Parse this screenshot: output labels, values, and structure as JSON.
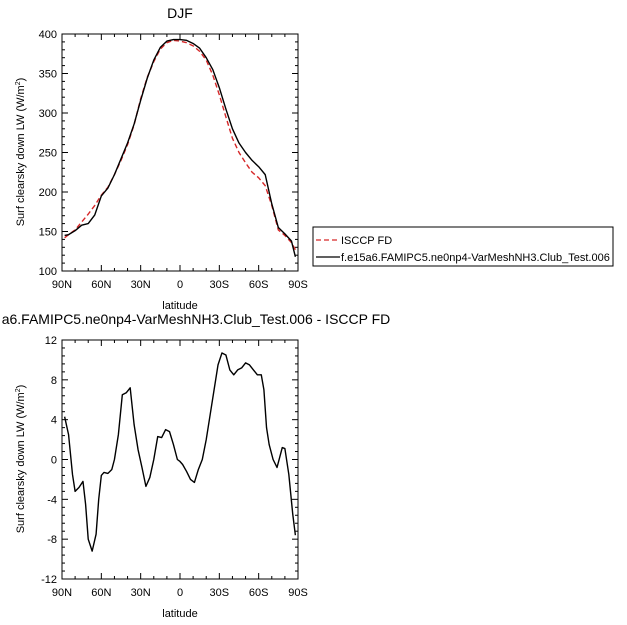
{
  "chart_data": [
    {
      "type": "line",
      "title": "DJF",
      "xlabel": "latitude",
      "ylabel": "Surf clearsky down LW (W/m",
      "ylabel_sup": "2",
      "ylabel_close": ")",
      "xlim": [
        90,
        -90
      ],
      "ylim": [
        100,
        400
      ],
      "yticks": [
        100,
        150,
        200,
        250,
        300,
        350,
        400
      ],
      "x_tick_values": [
        90,
        60,
        30,
        0,
        -30,
        -60,
        -90
      ],
      "x_tick_labels": [
        "90N",
        "60N",
        "30N",
        "0",
        "30S",
        "60S",
        "90S"
      ],
      "legend_position": "right",
      "series": [
        {
          "name": "ISCCP FD",
          "color": "#d62728",
          "dash": "dashed",
          "x": [
            88,
            85,
            80,
            75,
            70,
            65,
            60,
            55,
            50,
            45,
            40,
            35,
            30,
            25,
            20,
            15,
            10,
            5,
            0,
            -5,
            -10,
            -15,
            -20,
            -25,
            -30,
            -35,
            -40,
            -45,
            -50,
            -55,
            -60,
            -65,
            -70,
            -75,
            -80,
            -85,
            -88
          ],
          "y": [
            142,
            146,
            152,
            162,
            172,
            183,
            196,
            206,
            222,
            240,
            260,
            285,
            318,
            345,
            365,
            381,
            389,
            392,
            391,
            389,
            385,
            378,
            367,
            348,
            323,
            295,
            268,
            250,
            237,
            225,
            218,
            208,
            183,
            152,
            145,
            136,
            127
          ]
        },
        {
          "name": "f.e15a6.FAMIPC5.ne0np4-VarMeshNH3.Club_Test.006",
          "color": "#000000",
          "dash": "solid",
          "x": [
            88,
            85,
            80,
            75,
            70,
            65,
            60,
            55,
            50,
            45,
            40,
            35,
            30,
            25,
            20,
            15,
            10,
            5,
            0,
            -5,
            -10,
            -15,
            -20,
            -25,
            -30,
            -35,
            -40,
            -45,
            -50,
            -55,
            -60,
            -65,
            -70,
            -75,
            -80,
            -85,
            -88
          ],
          "y": [
            145,
            146,
            151,
            158,
            160,
            171,
            195,
            205,
            222,
            242,
            262,
            286,
            316,
            344,
            367,
            383,
            391,
            393,
            393,
            392,
            388,
            382,
            370,
            355,
            332,
            305,
            280,
            262,
            250,
            240,
            232,
            222,
            185,
            155,
            147,
            138,
            118
          ]
        }
      ]
    },
    {
      "type": "line",
      "title": "a6.FAMIPC5.ne0np4-VarMeshNH3.Club_Test.006 - ISCCP FD",
      "xlabel": "latitude",
      "ylabel": "Surf clearsky down LW (W/m",
      "ylabel_sup": "2",
      "ylabel_close": ")",
      "xlim": [
        90,
        -90
      ],
      "ylim": [
        -12,
        12
      ],
      "yticks": [
        -12,
        -8,
        -4,
        0,
        4,
        8,
        12
      ],
      "x_tick_values": [
        90,
        60,
        30,
        0,
        -30,
        -60,
        -90
      ],
      "x_tick_labels": [
        "90N",
        "60N",
        "30N",
        "0",
        "30S",
        "60S",
        "90S"
      ],
      "series": [
        {
          "color": "#000000",
          "dash": "solid",
          "x": [
            88,
            85,
            82,
            80,
            77,
            74,
            72,
            70,
            67,
            64,
            62,
            60,
            58,
            55,
            52,
            50,
            47,
            44,
            41,
            38,
            35,
            32,
            29,
            26,
            23,
            20,
            17,
            14,
            11,
            8,
            5,
            2,
            0,
            -2,
            -5,
            -8,
            -11,
            -14,
            -17,
            -20,
            -23,
            -26,
            -29,
            -32,
            -35,
            -38,
            -41,
            -44,
            -47,
            -50,
            -53,
            -56,
            -59,
            -62,
            -64,
            -66,
            -68,
            -71,
            -74,
            -76,
            -78,
            -80,
            -83,
            -86,
            -88
          ],
          "y": [
            4.3,
            2.5,
            -1.5,
            -3.2,
            -2.8,
            -2.2,
            -4.5,
            -8.0,
            -9.2,
            -7.5,
            -4.0,
            -1.6,
            -1.3,
            -1.4,
            -1.0,
            0.0,
            2.5,
            6.5,
            6.7,
            7.2,
            3.5,
            1.0,
            -0.8,
            -2.7,
            -1.8,
            0.0,
            2.3,
            2.2,
            3.0,
            2.8,
            1.5,
            0.0,
            -0.2,
            -0.5,
            -1.2,
            -2.0,
            -2.3,
            -1.0,
            0.0,
            2.0,
            4.5,
            7.0,
            9.5,
            10.7,
            10.5,
            9.0,
            8.5,
            9.0,
            9.2,
            9.7,
            9.5,
            9.0,
            8.5,
            8.5,
            7.0,
            3.2,
            1.5,
            0.0,
            -0.8,
            0.2,
            1.2,
            1.1,
            -1.5,
            -5.5,
            -7.6
          ]
        }
      ]
    }
  ]
}
